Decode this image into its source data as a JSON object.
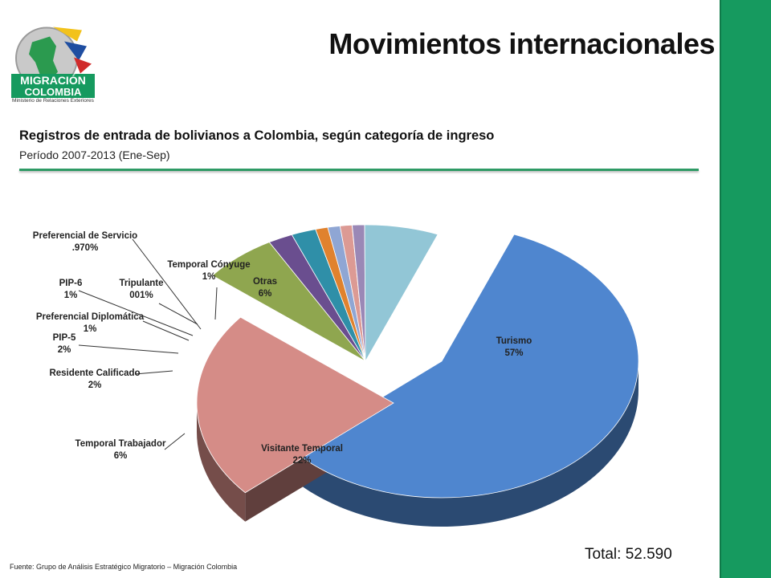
{
  "title": "Movimientos internacionales",
  "logo": {
    "line1": "MIGRACIÓN",
    "line2": "COLOMBIA",
    "line3": "Ministerio de Relaciones Exteriores"
  },
  "subtitle": "Registros de entrada de bolivianos a Colombia, según categoría de ingreso",
  "period": "Período 2007-2013 (Ene-Sep)",
  "total": "Total: 52.590",
  "source": "Fuente: Grupo de Análisis Estratégico Migratorio – Migración Colombia",
  "chart_data": {
    "type": "pie",
    "title": "",
    "slices": [
      {
        "name": "Turismo",
        "label": "Turismo",
        "pct": "57%",
        "value": 57,
        "color": "#4f86cf"
      },
      {
        "name": "Visitante Temporal",
        "label": "Visitante Temporal",
        "pct": "22%",
        "value": 22,
        "color": "#d58c87"
      },
      {
        "name": "Temporal Trabajador",
        "label": "Temporal Trabajador",
        "pct": "6%",
        "value": 6,
        "color": "#8fa64f"
      },
      {
        "name": "Residente Calificado",
        "label": "Residente Calificado",
        "pct": "2%",
        "value": 2,
        "color": "#6a4e8f"
      },
      {
        "name": "PIP-5",
        "label": "PIP-5",
        "pct": "2%",
        "value": 2,
        "color": "#2f8fa8"
      },
      {
        "name": "Preferencial Diplomática",
        "label": "Preferencial Diplomática",
        "pct": "1%",
        "value": 1,
        "color": "#e0822e"
      },
      {
        "name": "PIP-6",
        "label": "PIP-6",
        "pct": "1%",
        "value": 1,
        "color": "#8fa6d4"
      },
      {
        "name": "Preferencial de Servicio",
        "label": "Preferencial de Servicio",
        "pct": ".970%",
        "value": 0.97,
        "color": "#dc9a94"
      },
      {
        "name": "Tripulante",
        "label": "Tripulante",
        "pct": "001%",
        "value": 0.01,
        "color": "#b6cb86"
      },
      {
        "name": "Temporal Cónyuge",
        "label": "Temporal Cónyuge",
        "pct": "1%",
        "value": 1,
        "color": "#9a88b6"
      },
      {
        "name": "Otras",
        "label": "Otras",
        "pct": "6%",
        "value": 6,
        "color": "#92c6d6"
      }
    ]
  }
}
